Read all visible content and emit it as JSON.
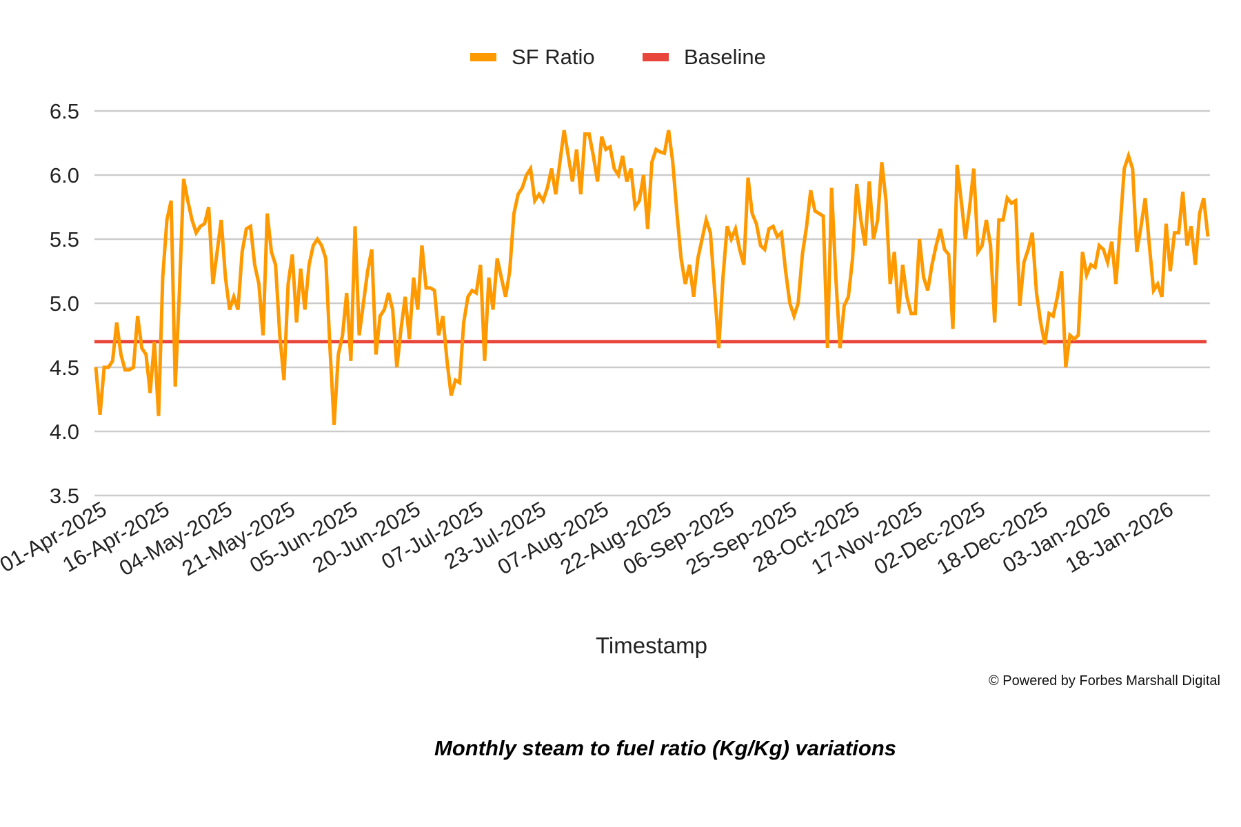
{
  "chart_data": {
    "type": "line",
    "title": "",
    "xlabel": "Timestamp",
    "ylabel": "",
    "ylim": [
      3.5,
      6.5
    ],
    "yticks": [
      "6.5",
      "6.0",
      "5.5",
      "5.0",
      "4.5",
      "4.0",
      "3.5"
    ],
    "ytick_values": [
      6.5,
      6.0,
      5.5,
      5.0,
      4.5,
      4.0,
      3.5
    ],
    "xtick_labels": [
      "01-Apr-2025",
      "16-Apr-2025",
      "04-May-2025",
      "21-May-2025",
      "05-Jun-2025",
      "20-Jun-2025",
      "07-Jul-2025",
      "23-Jul-2025",
      "07-Aug-2025",
      "22-Aug-2025",
      "06-Sep-2025",
      "25-Sep-2025",
      "28-Oct-2025",
      "17-Nov-2025",
      "02-Dec-2025",
      "18-Dec-2025",
      "03-Jan-2026",
      "18-Jan-2026"
    ],
    "grid": true,
    "legend_placement": "top-center",
    "series": [
      {
        "name": "SF Ratio",
        "color": "#ff9900",
        "values": [
          4.5,
          4.13,
          4.5,
          4.5,
          4.55,
          4.85,
          4.6,
          4.48,
          4.48,
          4.5,
          4.9,
          4.65,
          4.6,
          4.3,
          4.7,
          4.12,
          5.2,
          5.65,
          5.8,
          4.35,
          5.1,
          5.97,
          5.8,
          5.65,
          5.55,
          5.6,
          5.62,
          5.75,
          5.15,
          5.4,
          5.65,
          5.2,
          4.95,
          5.05,
          4.95,
          5.4,
          5.58,
          5.6,
          5.3,
          5.15,
          4.75,
          5.7,
          5.4,
          5.3,
          4.75,
          4.4,
          5.15,
          5.38,
          4.85,
          5.27,
          4.95,
          5.3,
          5.45,
          5.5,
          5.45,
          5.35,
          4.65,
          4.05,
          4.6,
          4.75,
          5.08,
          4.55,
          5.6,
          4.75,
          5.0,
          5.25,
          5.42,
          4.6,
          4.9,
          4.95,
          5.08,
          4.95,
          4.5,
          4.8,
          5.05,
          4.72,
          5.2,
          4.95,
          5.45,
          5.12,
          5.12,
          5.1,
          4.75,
          4.9,
          4.55,
          4.28,
          4.4,
          4.38,
          4.85,
          5.05,
          5.1,
          5.08,
          5.3,
          4.55,
          5.2,
          4.95,
          5.35,
          5.2,
          5.05,
          5.25,
          5.7,
          5.85,
          5.9,
          6.0,
          6.05,
          5.8,
          5.85,
          5.8,
          5.9,
          6.05,
          5.85,
          6.1,
          6.35,
          6.15,
          5.95,
          6.2,
          5.85,
          6.32,
          6.32,
          6.15,
          5.95,
          6.3,
          6.2,
          6.22,
          6.05,
          6.0,
          6.15,
          5.95,
          6.05,
          5.75,
          5.8,
          6.0,
          5.58,
          6.1,
          6.2,
          6.18,
          6.17,
          6.35,
          6.1,
          5.7,
          5.35,
          5.15,
          5.3,
          5.05,
          5.35,
          5.5,
          5.65,
          5.55,
          5.1,
          4.65,
          5.2,
          5.6,
          5.5,
          5.58,
          5.42,
          5.3,
          5.98,
          5.7,
          5.62,
          5.45,
          5.42,
          5.58,
          5.6,
          5.52,
          5.55,
          5.25,
          5.0,
          4.9,
          5.0,
          5.38,
          5.6,
          5.88,
          5.72,
          5.7,
          5.68,
          4.65,
          5.9,
          5.2,
          4.65,
          4.98,
          5.05,
          5.35,
          5.93,
          5.65,
          5.45,
          5.95,
          5.5,
          5.65,
          6.1,
          5.8,
          5.15,
          5.4,
          4.92,
          5.3,
          5.05,
          4.92,
          4.92,
          5.5,
          5.2,
          5.1,
          5.3,
          5.45,
          5.58,
          5.42,
          5.38,
          4.8,
          6.08,
          5.8,
          5.5,
          5.75,
          6.05,
          5.4,
          5.45,
          5.65,
          5.45,
          4.85,
          5.65,
          5.65,
          5.82,
          5.78,
          5.8,
          4.98,
          5.32,
          5.42,
          5.55,
          5.08,
          4.85,
          4.68,
          4.92,
          4.9,
          5.05,
          5.25,
          4.5,
          4.75,
          4.72,
          4.75,
          5.4,
          5.22,
          5.3,
          5.28,
          5.45,
          5.42,
          5.32,
          5.48,
          5.15,
          5.6,
          6.05,
          6.15,
          6.05,
          5.4,
          5.6,
          5.82,
          5.45,
          5.1,
          5.15,
          5.05,
          5.62,
          5.25,
          5.55,
          5.55,
          5.87,
          5.45,
          5.6,
          5.3,
          5.7,
          5.82,
          5.52
        ]
      },
      {
        "name": "Baseline",
        "color": "#e8463a",
        "value": 4.7
      }
    ]
  },
  "footer": {
    "powered_by": "© Powered by Forbes Marshall Digital",
    "caption": "Monthly steam to fuel ratio (Kg/Kg) variations"
  }
}
